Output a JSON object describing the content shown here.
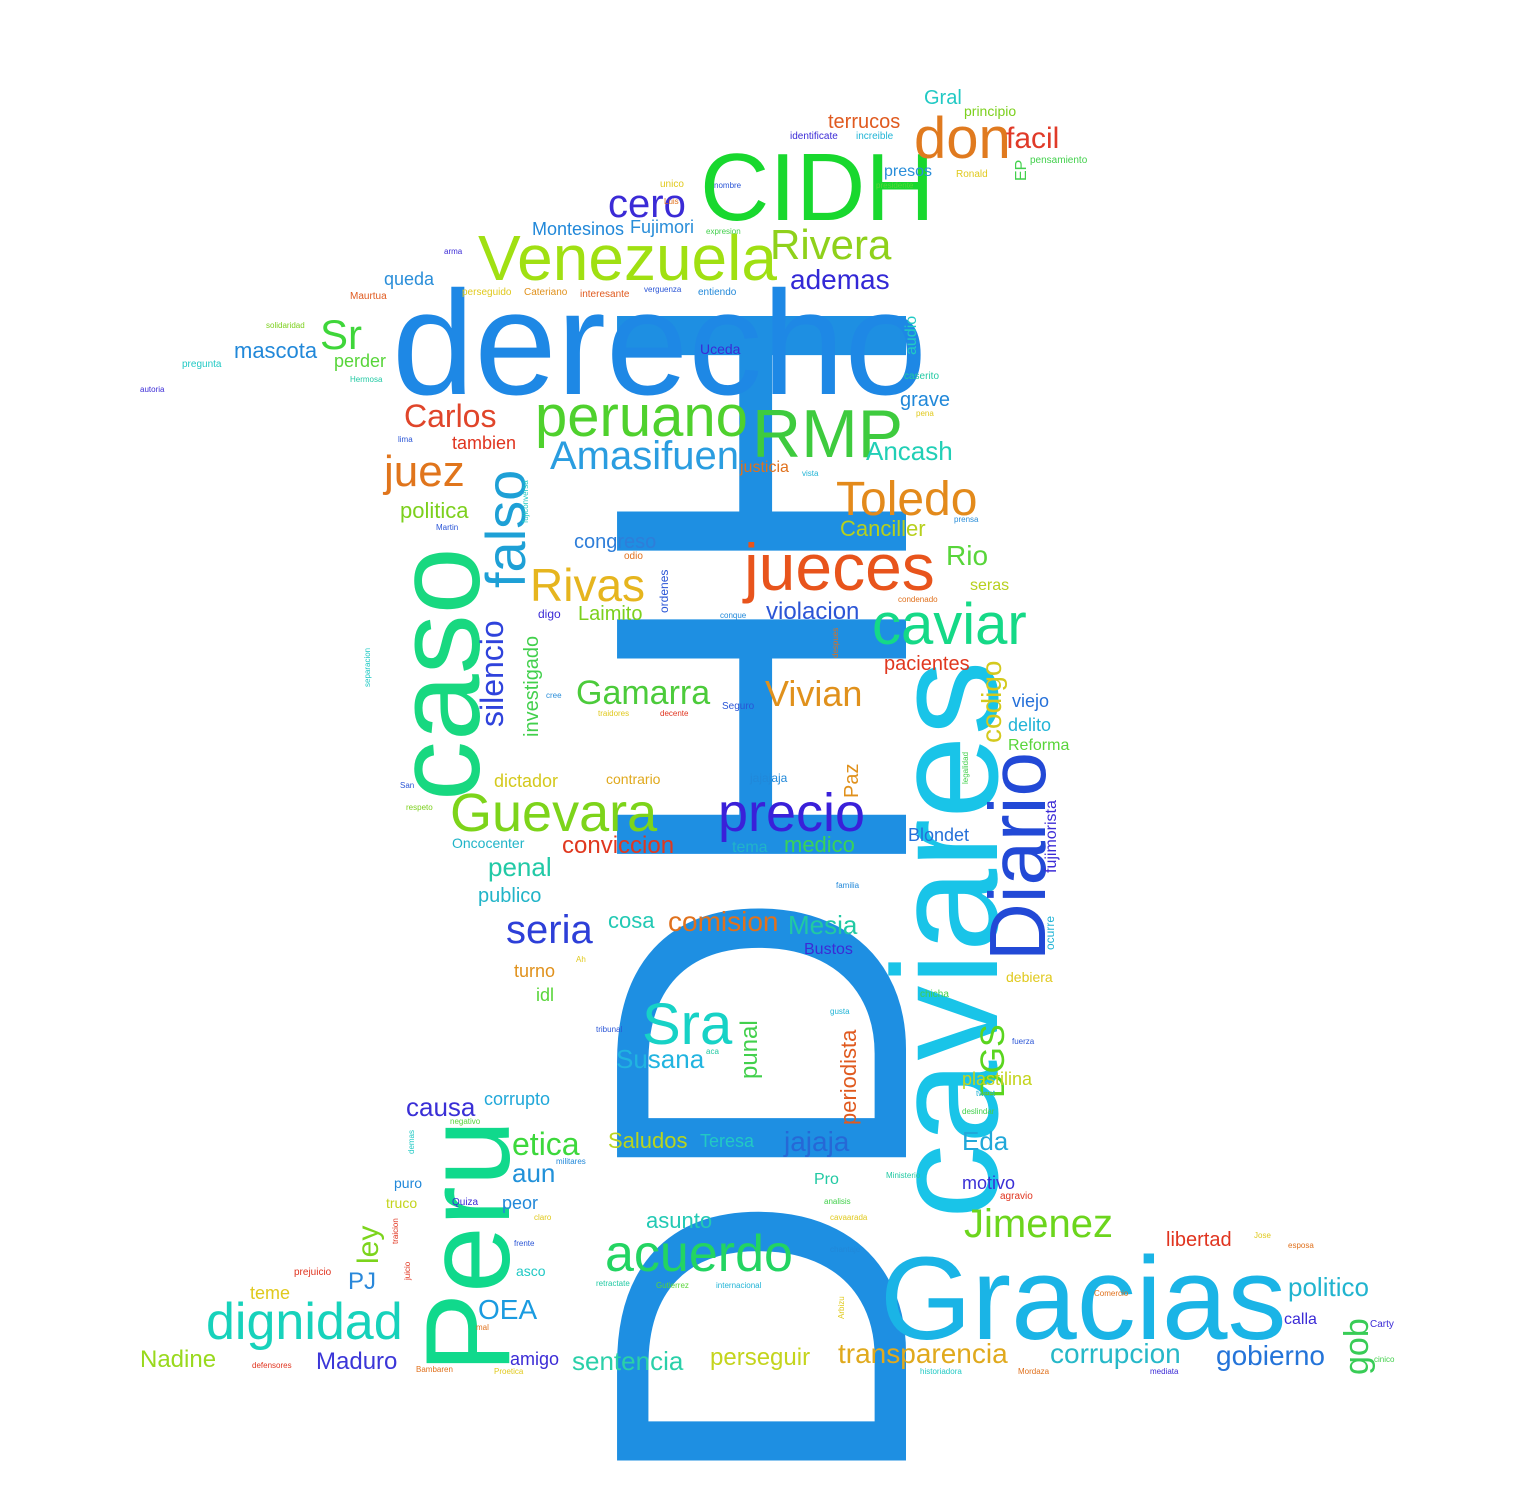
{
  "words": [
    {
      "text": "DDHH",
      "color": "#1e8fe2",
      "rotated": true
    },
    {
      "text": "derecho",
      "color": "#1e88e5",
      "rotated": false
    },
    {
      "text": "Gracias",
      "color": "#1ab4e6",
      "rotated": false
    },
    {
      "text": "caviares",
      "color": "#19c4e8",
      "rotated": true
    },
    {
      "text": "Peru",
      "color": "#10d98c",
      "rotated": true
    },
    {
      "text": "caso",
      "color": "#18d880",
      "rotated": true
    },
    {
      "text": "CIDH",
      "color": "#18d82e",
      "rotated": false
    },
    {
      "text": "Venezuela",
      "color": "#a0e012",
      "rotated": false
    },
    {
      "text": "RMP",
      "color": "#3ecb3e",
      "rotated": false
    },
    {
      "text": "peruano",
      "color": "#4fd12d",
      "rotated": false
    },
    {
      "text": "Diario",
      "color": "#2249d6",
      "rotated": true
    },
    {
      "text": "jueces",
      "color": "#e8541c",
      "rotated": false
    },
    {
      "text": "acuerdo",
      "color": "#23d462",
      "rotated": false
    },
    {
      "text": "dignidad",
      "color": "#17d2bb",
      "rotated": false
    },
    {
      "text": "Guevara",
      "color": "#7dd41a",
      "rotated": false
    },
    {
      "text": "caviar",
      "color": "#15d987",
      "rotated": false
    },
    {
      "text": "precio",
      "color": "#3a20d9",
      "rotated": false
    },
    {
      "text": "Rivas",
      "color": "#e6b51e",
      "rotated": false
    },
    {
      "text": "falso",
      "color": "#1ea0d6",
      "rotated": true
    },
    {
      "text": "Toledo",
      "color": "#e38a1b",
      "rotated": false
    },
    {
      "text": "don",
      "color": "#e07a1f",
      "rotated": false
    },
    {
      "text": "Amasifuen",
      "color": "#2a9de0",
      "rotated": false
    },
    {
      "text": "Rivera",
      "color": "#8fd11b",
      "rotated": false
    },
    {
      "text": "juez",
      "color": "#e0751c",
      "rotated": false
    },
    {
      "text": "Sra",
      "color": "#17d2c6",
      "rotated": false
    },
    {
      "text": "Jimenez",
      "color": "#6cd51d",
      "rotated": false
    },
    {
      "text": "silencio",
      "color": "#2f43dc",
      "rotated": true
    },
    {
      "text": "Gamarra",
      "color": "#4ccb3b",
      "rotated": false
    },
    {
      "text": "Vivian",
      "color": "#e0911c",
      "rotated": false
    },
    {
      "text": "seria",
      "color": "#2d3fd8",
      "rotated": false
    },
    {
      "text": "cero",
      "color": "#3b2bd6",
      "rotated": false
    },
    {
      "text": "Carlos",
      "color": "#e0452a",
      "rotated": false
    },
    {
      "text": "Sr",
      "color": "#3fd63a",
      "rotated": false
    },
    {
      "text": "etica",
      "color": "#3dd83c",
      "rotated": false
    },
    {
      "text": "facil",
      "color": "#e03a28",
      "rotated": false
    },
    {
      "text": "OEA",
      "color": "#1a9be0",
      "rotated": false
    },
    {
      "text": "DGS",
      "color": "#5ad51f",
      "rotated": true
    },
    {
      "text": "comision",
      "color": "#e0711d",
      "rotated": false
    },
    {
      "text": "transparencia",
      "color": "#e0a91d",
      "rotated": false
    },
    {
      "text": "corrupcion",
      "color": "#26b8c8",
      "rotated": false
    },
    {
      "text": "gobierno",
      "color": "#2474d9",
      "rotated": false
    },
    {
      "text": "sentencia",
      "color": "#2ad0a9",
      "rotated": false
    },
    {
      "text": "Susana",
      "color": "#21b4e0",
      "rotated": false
    },
    {
      "text": "Maduro",
      "color": "#3b36d8",
      "rotated": false
    },
    {
      "text": "ademas",
      "color": "#3328d6",
      "rotated": false
    },
    {
      "text": "Mesia",
      "color": "#21c9a3",
      "rotated": false
    },
    {
      "text": "jajaja",
      "color": "#2668d6",
      "rotated": false
    },
    {
      "text": "Saludos",
      "color": "#b9d41d",
      "rotated": false
    },
    {
      "text": "causa",
      "color": "#3a2fd6",
      "rotated": false
    },
    {
      "text": "Eda",
      "color": "#21a8d9",
      "rotated": false
    },
    {
      "text": "aun",
      "color": "#2191d9",
      "rotated": false
    },
    {
      "text": "PJ",
      "color": "#2a88da",
      "rotated": false
    },
    {
      "text": "ley",
      "color": "#7cd41c",
      "rotated": true
    },
    {
      "text": "gob",
      "color": "#38cc56",
      "rotated": true
    },
    {
      "text": "politico",
      "color": "#21b4cf",
      "rotated": false
    },
    {
      "text": "Nadine",
      "color": "#99d91d",
      "rotated": false
    },
    {
      "text": "perseguir",
      "color": "#c4d41d",
      "rotated": false
    },
    {
      "text": "Rio",
      "color": "#58d53a",
      "rotated": false
    },
    {
      "text": "penal",
      "color": "#22c9a6",
      "rotated": false
    },
    {
      "text": "codigo",
      "color": "#d4c91d",
      "rotated": true
    },
    {
      "text": "conviccion",
      "color": "#e0381f",
      "rotated": false
    },
    {
      "text": "medico",
      "color": "#3ad258",
      "rotated": false
    },
    {
      "text": "violacion",
      "color": "#2b55d6",
      "rotated": false
    },
    {
      "text": "mascota",
      "color": "#2188d9",
      "rotated": false
    },
    {
      "text": "Ancash",
      "color": "#21cfb6",
      "rotated": false
    },
    {
      "text": "Laimito",
      "color": "#7cd01d",
      "rotated": false
    },
    {
      "text": "congreso",
      "color": "#2e7ed9",
      "rotated": false
    },
    {
      "text": "asunto",
      "color": "#22c9b4",
      "rotated": false
    },
    {
      "text": "motivo",
      "color": "#3a2fd6",
      "rotated": false
    },
    {
      "text": "libertad",
      "color": "#e0341f",
      "rotated": false
    },
    {
      "text": "publico",
      "color": "#21b4c8",
      "rotated": false
    },
    {
      "text": "cosa",
      "color": "#22c9b4",
      "rotated": false
    },
    {
      "text": "investigado",
      "color": "#42d04c",
      "rotated": true
    },
    {
      "text": "politica",
      "color": "#7cd01d",
      "rotated": false
    },
    {
      "text": "tambien",
      "color": "#e0341f",
      "rotated": false
    },
    {
      "text": "pacientes",
      "color": "#e0381f",
      "rotated": false
    },
    {
      "text": "Canciller",
      "color": "#b7d01d",
      "rotated": false
    },
    {
      "text": "Blondet",
      "color": "#2570d9",
      "rotated": false
    },
    {
      "text": "Teresa",
      "color": "#22c9c4",
      "rotated": false
    },
    {
      "text": "peor",
      "color": "#2188d9",
      "rotated": false
    },
    {
      "text": "amigo",
      "color": "#3b2bd6",
      "rotated": false
    },
    {
      "text": "terrucos",
      "color": "#e05a1f",
      "rotated": false
    },
    {
      "text": "grave",
      "color": "#2188d9",
      "rotated": false
    },
    {
      "text": "perder",
      "color": "#58d53a",
      "rotated": false
    },
    {
      "text": "queda",
      "color": "#2a8ed9",
      "rotated": false
    },
    {
      "text": "Fujimori",
      "color": "#2a8ed9",
      "rotated": false
    },
    {
      "text": "Montesinos",
      "color": "#2188d9",
      "rotated": false
    },
    {
      "text": "corrupto",
      "color": "#21a8d9",
      "rotated": false
    },
    {
      "text": "delito",
      "color": "#21b4d6",
      "rotated": false
    },
    {
      "text": "viejo",
      "color": "#2570d9",
      "rotated": false
    },
    {
      "text": "Reforma",
      "color": "#58d53a",
      "rotated": false
    },
    {
      "text": "plastilina",
      "color": "#c4d41d",
      "rotated": false
    },
    {
      "text": "punal",
      "color": "#42d04c",
      "rotated": true
    },
    {
      "text": "periodista",
      "color": "#e05a1f",
      "rotated": true
    },
    {
      "text": "fujimorista",
      "color": "#3b2bd6",
      "rotated": true
    },
    {
      "text": "Paz",
      "color": "#e0911c",
      "rotated": true
    },
    {
      "text": "dictador",
      "color": "#d4c91d",
      "rotated": false
    },
    {
      "text": "contrario",
      "color": "#e0a91d",
      "rotated": false
    },
    {
      "text": "Bustos",
      "color": "#3b2bd6",
      "rotated": false
    },
    {
      "text": "turno",
      "color": "#e0911c",
      "rotated": false
    },
    {
      "text": "idl",
      "color": "#58d53a",
      "rotated": false
    },
    {
      "text": "teme",
      "color": "#e0c91d",
      "rotated": false
    },
    {
      "text": "justicia",
      "color": "#e0711d",
      "rotated": false
    },
    {
      "text": "seras",
      "color": "#b7d01d",
      "rotated": false
    },
    {
      "text": "Uceda",
      "color": "#3b2bd6",
      "rotated": false
    },
    {
      "text": "audio",
      "color": "#21c9c4",
      "rotated": true
    },
    {
      "text": "asco",
      "color": "#21c9c4",
      "rotated": false
    },
    {
      "text": "truco",
      "color": "#c4d41d",
      "rotated": false
    },
    {
      "text": "puro",
      "color": "#2188d9",
      "rotated": false
    },
    {
      "text": "tema",
      "color": "#21b4c8",
      "rotated": false
    },
    {
      "text": "Pro",
      "color": "#21c9a3",
      "rotated": false
    },
    {
      "text": "Gral",
      "color": "#21c9c4",
      "rotated": false
    },
    {
      "text": "jajajaja",
      "color": "#2188d9",
      "rotated": false
    },
    {
      "text": "Oncocenter",
      "color": "#21b4c8",
      "rotated": false
    },
    {
      "text": "calla",
      "color": "#3b2bd6",
      "rotated": false
    },
    {
      "text": "Carty",
      "color": "#3b2bd6",
      "rotated": false
    },
    {
      "text": "presos",
      "color": "#2a8ed9",
      "rotated": false
    },
    {
      "text": "principio",
      "color": "#7cd01d",
      "rotated": false
    },
    {
      "text": "debiera",
      "color": "#e0c91d",
      "rotated": false
    },
    {
      "text": "digo",
      "color": "#3b2bd6",
      "rotated": false
    },
    {
      "text": "ordenes",
      "color": "#2a55d6",
      "rotated": true
    },
    {
      "text": "ocurre",
      "color": "#21b4d6",
      "rotated": true
    },
    {
      "text": "agravio",
      "color": "#e0341f",
      "rotated": false
    },
    {
      "text": "Quiza",
      "color": "#3b2bd6",
      "rotated": false
    },
    {
      "text": "EP",
      "color": "#42d04c",
      "rotated": true
    },
    {
      "text": "pensamiento",
      "color": "#42d04c",
      "rotated": false
    },
    {
      "text": "identificate",
      "color": "#3b2bd6",
      "rotated": false
    },
    {
      "text": "increible",
      "color": "#21b4d6",
      "rotated": false
    },
    {
      "text": "presidente",
      "color": "#58d53a",
      "rotated": false
    },
    {
      "text": "Ronald",
      "color": "#e0c91d",
      "rotated": false
    },
    {
      "text": "unico",
      "color": "#e0c91d",
      "rotated": false
    },
    {
      "text": "nombre",
      "color": "#2a55d6",
      "rotated": false
    },
    {
      "text": "Luis",
      "color": "#e0711d",
      "rotated": false
    },
    {
      "text": "expresion",
      "color": "#42d04c",
      "rotated": false
    },
    {
      "text": "arma",
      "color": "#3b2bd6",
      "rotated": false
    },
    {
      "text": "perseguido",
      "color": "#e0c91d",
      "rotated": false
    },
    {
      "text": "Cateriano",
      "color": "#e0911c",
      "rotated": false
    },
    {
      "text": "interesante",
      "color": "#e05a1f",
      "rotated": false
    },
    {
      "text": "verguenza",
      "color": "#2a55d6",
      "rotated": false
    },
    {
      "text": "entiendo",
      "color": "#2188d9",
      "rotated": false
    },
    {
      "text": "Maurtua",
      "color": "#e05a1f",
      "rotated": false
    },
    {
      "text": "solidaridad",
      "color": "#7cd01d",
      "rotated": false
    },
    {
      "text": "pregunta",
      "color": "#21c9c4",
      "rotated": false
    },
    {
      "text": "autoria",
      "color": "#3b2bd6",
      "rotated": false
    },
    {
      "text": "Hermosa",
      "color": "#21c9a3",
      "rotated": false
    },
    {
      "text": "caserito",
      "color": "#21c9a3",
      "rotated": false
    },
    {
      "text": "pena",
      "color": "#e0c91d",
      "rotated": false
    },
    {
      "text": "lima",
      "color": "#2a55d6",
      "rotated": false
    },
    {
      "text": "vista",
      "color": "#21b4d6",
      "rotated": false
    },
    {
      "text": "fujiconversa",
      "color": "#21c9c4",
      "rotated": true
    },
    {
      "text": "prensa",
      "color": "#2a8ed9",
      "rotated": false
    },
    {
      "text": "Martin",
      "color": "#2a55d6",
      "rotated": false
    },
    {
      "text": "odio",
      "color": "#e0711d",
      "rotated": false
    },
    {
      "text": "condenado",
      "color": "#e0711d",
      "rotated": false
    },
    {
      "text": "conque",
      "color": "#2188d9",
      "rotated": false
    },
    {
      "text": "despues",
      "color": "#e0711d",
      "rotated": true
    },
    {
      "text": "separacion",
      "color": "#21c9c4",
      "rotated": true
    },
    {
      "text": "cree",
      "color": "#2a8ed9",
      "rotated": false
    },
    {
      "text": "traidores",
      "color": "#e0c91d",
      "rotated": false
    },
    {
      "text": "decente",
      "color": "#e0341f",
      "rotated": false
    },
    {
      "text": "Seguro",
      "color": "#2a55d6",
      "rotated": false
    },
    {
      "text": "legalidad",
      "color": "#42d04c",
      "rotated": true
    },
    {
      "text": "San",
      "color": "#2a55d6",
      "rotated": false
    },
    {
      "text": "respeto",
      "color": "#7cd01d",
      "rotated": false
    },
    {
      "text": "familia",
      "color": "#2188d9",
      "rotated": false
    },
    {
      "text": "Ah",
      "color": "#e0c91d",
      "rotated": false
    },
    {
      "text": "chicha",
      "color": "#42d04c",
      "rotated": false
    },
    {
      "text": "gusta",
      "color": "#21b4d6",
      "rotated": false
    },
    {
      "text": "fuerza",
      "color": "#2a55d6",
      "rotated": false
    },
    {
      "text": "tribunal",
      "color": "#2a55d6",
      "rotated": false
    },
    {
      "text": "aca",
      "color": "#21c9a3",
      "rotated": false
    },
    {
      "text": "tweet",
      "color": "#21b4d6",
      "rotated": false
    },
    {
      "text": "deslindar",
      "color": "#42d04c",
      "rotated": false
    },
    {
      "text": "negativo",
      "color": "#58d53a",
      "rotated": false
    },
    {
      "text": "demas",
      "color": "#21c9c4",
      "rotated": true
    },
    {
      "text": "militares",
      "color": "#2188d9",
      "rotated": false
    },
    {
      "text": "Ministerio",
      "color": "#21c9a3",
      "rotated": false
    },
    {
      "text": "analisis",
      "color": "#42d04c",
      "rotated": false
    },
    {
      "text": "claro",
      "color": "#e0c91d",
      "rotated": false
    },
    {
      "text": "cavaarada",
      "color": "#e0c91d",
      "rotated": false
    },
    {
      "text": "traicion",
      "color": "#e0341f",
      "rotated": true
    },
    {
      "text": "juicio",
      "color": "#e0341f",
      "rotated": true
    },
    {
      "text": "frente",
      "color": "#2a55d6",
      "rotated": false
    },
    {
      "text": "chantaje",
      "color": "#2188d9",
      "rotated": false
    },
    {
      "text": "Jose",
      "color": "#e0c91d",
      "rotated": false
    },
    {
      "text": "esposa",
      "color": "#e0711d",
      "rotated": false
    },
    {
      "text": "prejuicio",
      "color": "#e0341f",
      "rotated": false
    },
    {
      "text": "retractate",
      "color": "#21c9a3",
      "rotated": false
    },
    {
      "text": "Gutierrez",
      "color": "#58d53a",
      "rotated": false
    },
    {
      "text": "internacional",
      "color": "#21b4d6",
      "rotated": false
    },
    {
      "text": "Arbizu",
      "color": "#e0c91d",
      "rotated": true
    },
    {
      "text": "Comercio",
      "color": "#e0711d",
      "rotated": false
    },
    {
      "text": "mal",
      "color": "#e0711d",
      "rotated": false
    },
    {
      "text": "defensores",
      "color": "#e0341f",
      "rotated": false
    },
    {
      "text": "Bambaren",
      "color": "#e0711d",
      "rotated": false
    },
    {
      "text": "Proetica",
      "color": "#e0c91d",
      "rotated": false
    },
    {
      "text": "historiadora",
      "color": "#21c9c4",
      "rotated": false
    },
    {
      "text": "Mordaza",
      "color": "#e0711d",
      "rotated": false
    },
    {
      "text": "mediata",
      "color": "#3b2bd6",
      "rotated": false
    },
    {
      "text": "cinico",
      "color": "#42d04c",
      "rotated": false
    }
  ]
}
